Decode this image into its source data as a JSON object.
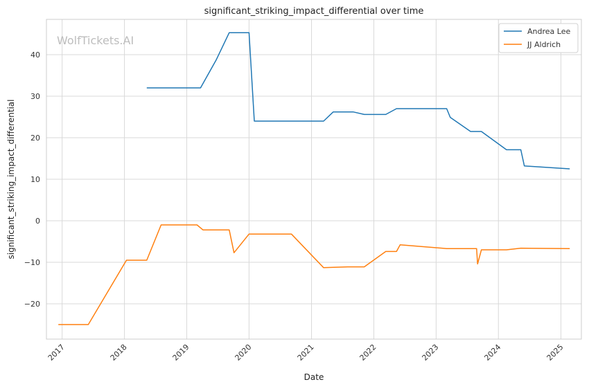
{
  "chart_data": {
    "type": "line",
    "title": "significant_striking_impact_differential over time",
    "xlabel": "Date",
    "ylabel": "significant_striking_impact_differential",
    "watermark": "WolfTickets.AI",
    "xlim": [
      "2016-10-01",
      "2025-05-01"
    ],
    "ylim": [
      -28.5,
      48.5
    ],
    "x_ticks": [
      "2017-01-01",
      "2018-01-01",
      "2019-01-01",
      "2020-01-01",
      "2021-01-01",
      "2022-01-01",
      "2023-01-01",
      "2024-01-01",
      "2025-01-01"
    ],
    "x_tick_labels": [
      "2017",
      "2018",
      "2019",
      "2020",
      "2021",
      "2022",
      "2023",
      "2024",
      "2025"
    ],
    "y_ticks": [
      -20,
      -10,
      0,
      10,
      20,
      30,
      40
    ],
    "y_tick_labels": [
      "−20",
      "−10",
      "0",
      "10",
      "20",
      "30",
      "40"
    ],
    "grid": true,
    "legend_position": "top-right",
    "series": [
      {
        "name": "Andrea Lee",
        "color": "#1f77b4",
        "points": [
          [
            "2018-05-12",
            32.0
          ],
          [
            "2019-03-23",
            32.0
          ],
          [
            "2019-06-22",
            38.7
          ],
          [
            "2019-09-07",
            45.3
          ],
          [
            "2020-01-01",
            45.3
          ],
          [
            "2020-02-01",
            24.0
          ],
          [
            "2021-03-13",
            24.0
          ],
          [
            "2021-05-08",
            26.2
          ],
          [
            "2021-09-04",
            26.2
          ],
          [
            "2021-11-06",
            25.6
          ],
          [
            "2022-03-12",
            25.6
          ],
          [
            "2022-05-14",
            27.0
          ],
          [
            "2023-03-04",
            27.0
          ],
          [
            "2023-03-25",
            24.9
          ],
          [
            "2023-07-22",
            21.5
          ],
          [
            "2023-09-23",
            21.5
          ],
          [
            "2024-02-17",
            17.1
          ],
          [
            "2024-05-11",
            17.1
          ],
          [
            "2024-06-01",
            13.2
          ],
          [
            "2025-02-22",
            12.5
          ]
        ]
      },
      {
        "name": "JJ Aldrich",
        "color": "#ff7f0e",
        "points": [
          [
            "2016-12-10",
            -25.0
          ],
          [
            "2017-06-03",
            -25.0
          ],
          [
            "2018-01-13",
            -9.5
          ],
          [
            "2018-05-12",
            -9.5
          ],
          [
            "2018-08-04",
            -1.0
          ],
          [
            "2019-03-02",
            -1.0
          ],
          [
            "2019-04-06",
            -2.2
          ],
          [
            "2019-09-07",
            -2.2
          ],
          [
            "2019-10-05",
            -7.7
          ],
          [
            "2020-01-01",
            -3.2
          ],
          [
            "2020-09-05",
            -3.2
          ],
          [
            "2021-03-13",
            -11.3
          ],
          [
            "2021-08-01",
            -11.1
          ],
          [
            "2021-11-06",
            -11.1
          ],
          [
            "2022-03-12",
            -7.4
          ],
          [
            "2022-05-14",
            -7.4
          ],
          [
            "2022-06-04",
            -5.8
          ],
          [
            "2023-03-04",
            -6.7
          ],
          [
            "2023-08-26",
            -6.7
          ],
          [
            "2023-09-01",
            -10.4
          ],
          [
            "2023-09-23",
            -7.0
          ],
          [
            "2024-02-17",
            -7.0
          ],
          [
            "2024-05-11",
            -6.6
          ],
          [
            "2025-02-22",
            -6.7
          ]
        ]
      }
    ]
  }
}
